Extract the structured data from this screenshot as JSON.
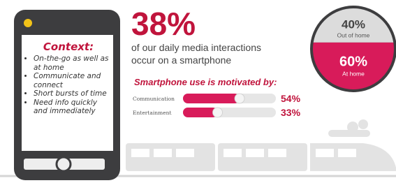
{
  "context": {
    "title": "Context:",
    "items": [
      "On-the-go as well as at home",
      "Communicate and connect",
      "Short bursts of time",
      "Need info quickly and immediately"
    ]
  },
  "headline": {
    "value_label": "38%",
    "lines": [
      "of our daily media interactions",
      "occur on a smartphone"
    ]
  },
  "motivation": {
    "title": "Smartphone use is motivated by:",
    "categories": [
      "Communication",
      "Entertainment"
    ],
    "values": [
      54,
      33
    ],
    "value_labels": [
      "54%",
      "33%"
    ],
    "color": "#d81b5a",
    "track_color": "#e6e6e6"
  },
  "location": {
    "labels": [
      "Out of home",
      "At home"
    ],
    "values": [
      40,
      60
    ],
    "value_labels": [
      "40%",
      "60%"
    ],
    "colors": [
      "#dcdcdc",
      "#d81b5a"
    ]
  }
}
